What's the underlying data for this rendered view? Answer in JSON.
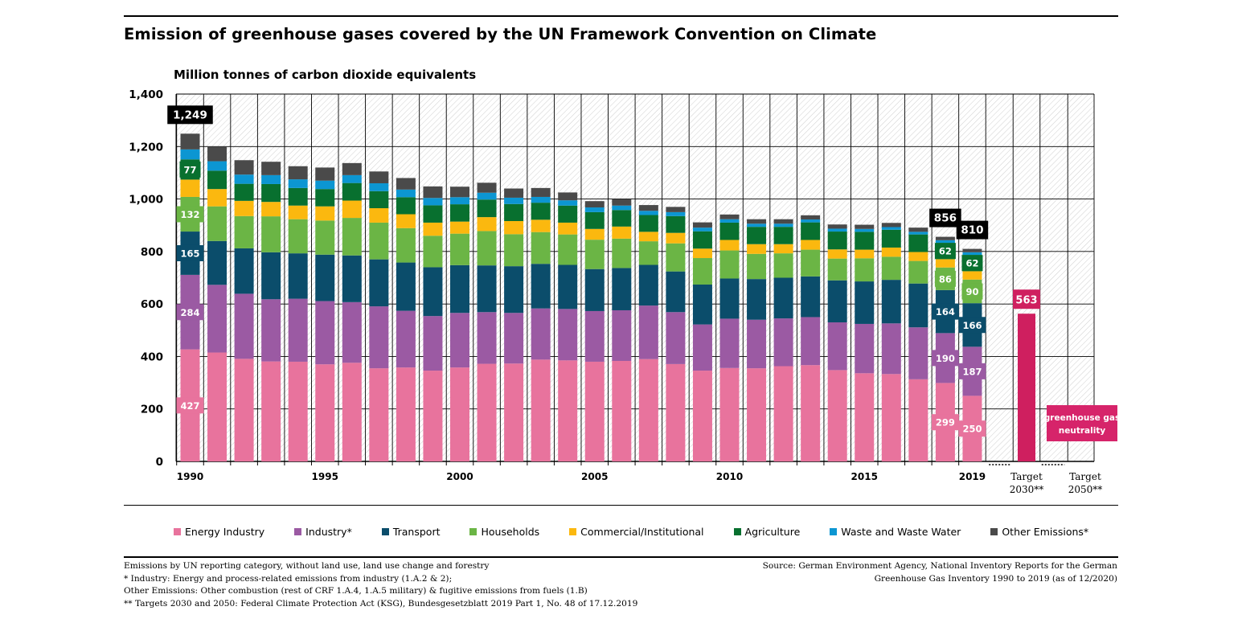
{
  "title": "Emission of greenhouse gases covered by the UN Framework Convention on Climate",
  "chart_data": {
    "type": "bar",
    "stacked": true,
    "ylabel": "Million tonnes of carbon dioxide equivalents",
    "ylim": [
      0,
      1400
    ],
    "yticks": [
      0,
      200,
      400,
      600,
      800,
      1000,
      1200,
      1400
    ],
    "ytick_labels": [
      "0",
      "200",
      "400",
      "600",
      "800",
      "1,000",
      "1,200",
      "1,400"
    ],
    "categories": [
      "1990",
      "1991",
      "1992",
      "1993",
      "1994",
      "1995",
      "1996",
      "1997",
      "1998",
      "1999",
      "2000",
      "2001",
      "2002",
      "2003",
      "2004",
      "2005",
      "2006",
      "2007",
      "2008",
      "2009",
      "2010",
      "2011",
      "2012",
      "2013",
      "2014",
      "2015",
      "2016",
      "2017",
      "2018",
      "2019"
    ],
    "x_labels": [
      {
        "index": 0,
        "text": "1990"
      },
      {
        "index": 5,
        "text": "1995"
      },
      {
        "index": 10,
        "text": "2000"
      },
      {
        "index": 15,
        "text": "2005"
      },
      {
        "index": 20,
        "text": "2010"
      },
      {
        "index": 25,
        "text": "2015"
      },
      {
        "index": 29,
        "text": "2019"
      }
    ],
    "series": [
      {
        "name": "Energy Industry",
        "color": "#e8739d",
        "values": [
          427,
          415,
          391,
          381,
          380,
          370,
          376,
          355,
          358,
          346,
          358,
          372,
          373,
          388,
          385,
          380,
          383,
          390,
          371,
          346,
          356,
          355,
          363,
          367,
          348,
          336,
          333,
          313,
          299,
          250
        ]
      },
      {
        "name": "Industry*",
        "color": "#9b5aa3",
        "values": [
          284,
          258,
          248,
          237,
          240,
          241,
          231,
          236,
          216,
          208,
          208,
          197,
          193,
          195,
          196,
          193,
          193,
          204,
          198,
          176,
          188,
          185,
          182,
          183,
          182,
          188,
          193,
          198,
          190,
          187
        ]
      },
      {
        "name": "Transport",
        "color": "#0b4d6b",
        "values": [
          165,
          167,
          173,
          179,
          173,
          177,
          178,
          179,
          184,
          186,
          182,
          178,
          178,
          170,
          168,
          160,
          161,
          155,
          155,
          152,
          153,
          155,
          155,
          155,
          160,
          162,
          166,
          167,
          164,
          166
        ]
      },
      {
        "name": "Households",
        "color": "#6bb545",
        "values": [
          132,
          132,
          123,
          137,
          130,
          130,
          143,
          140,
          131,
          120,
          120,
          131,
          122,
          121,
          116,
          112,
          112,
          90,
          107,
          101,
          107,
          96,
          93,
          102,
          83,
          88,
          88,
          86,
          86,
          90
        ]
      },
      {
        "name": "Commercial/Institutional",
        "color": "#fbb80f",
        "values": [
          66,
          66,
          58,
          55,
          52,
          54,
          66,
          55,
          53,
          50,
          46,
          53,
          50,
          47,
          45,
          41,
          46,
          36,
          40,
          36,
          40,
          37,
          35,
          37,
          35,
          33,
          35,
          34,
          32,
          32
        ]
      },
      {
        "name": "Agriculture",
        "color": "#08702f",
        "values": [
          77,
          70,
          65,
          68,
          67,
          66,
          67,
          65,
          65,
          66,
          66,
          67,
          65,
          65,
          65,
          64,
          63,
          64,
          64,
          66,
          66,
          66,
          66,
          67,
          68,
          68,
          68,
          67,
          62,
          62
        ]
      },
      {
        "name": "Waste and Waste Water",
        "color": "#0c96d2",
        "values": [
          38,
          36,
          35,
          34,
          33,
          32,
          30,
          30,
          29,
          28,
          27,
          26,
          24,
          22,
          20,
          18,
          17,
          16,
          15,
          14,
          13,
          12,
          12,
          11,
          11,
          11,
          10,
          10,
          10,
          10
        ]
      },
      {
        "name": "Other Emissions*",
        "color": "#4a4a4a",
        "values": [
          60,
          56,
          55,
          51,
          50,
          50,
          46,
          45,
          44,
          44,
          40,
          38,
          35,
          34,
          30,
          24,
          24,
          22,
          20,
          20,
          18,
          17,
          17,
          16,
          16,
          16,
          16,
          16,
          13,
          13
        ]
      }
    ],
    "segment_labels": [
      {
        "index": 0,
        "series": 0,
        "text": "427"
      },
      {
        "index": 0,
        "series": 1,
        "text": "284"
      },
      {
        "index": 0,
        "series": 2,
        "text": "165"
      },
      {
        "index": 0,
        "series": 3,
        "text": "132"
      },
      {
        "index": 0,
        "series": 5,
        "text": "77"
      },
      {
        "index": 28,
        "series": 0,
        "text": "299"
      },
      {
        "index": 28,
        "series": 1,
        "text": "190"
      },
      {
        "index": 28,
        "series": 2,
        "text": "164"
      },
      {
        "index": 28,
        "series": 3,
        "text": "86"
      },
      {
        "index": 28,
        "series": 5,
        "text": "62"
      },
      {
        "index": 29,
        "series": 0,
        "text": "250"
      },
      {
        "index": 29,
        "series": 1,
        "text": "187"
      },
      {
        "index": 29,
        "series": 2,
        "text": "166"
      },
      {
        "index": 29,
        "series": 3,
        "text": "90"
      },
      {
        "index": 29,
        "series": 5,
        "text": "62"
      }
    ],
    "total_labels": [
      {
        "index": 0,
        "value": 1249,
        "text": "1,249"
      },
      {
        "index": 28,
        "value": 856,
        "text": "856"
      },
      {
        "index": 29,
        "value": 810,
        "text": "810"
      }
    ],
    "targets": [
      {
        "name": "Target 2030",
        "label_line1": "Target",
        "label_line2": "2030**",
        "value": 563,
        "value_text": "563",
        "color": "#cf1f5f"
      },
      {
        "name": "Target 2050",
        "label_line1": "Target",
        "label_line2": "2050**",
        "text_line1": "greenhouse gas",
        "text_line2": "neutrality",
        "color": "#d6246a"
      }
    ]
  },
  "legend": [
    {
      "label": "Energy Industry",
      "color": "#e8739d"
    },
    {
      "label": "Industry*",
      "color": "#9b5aa3"
    },
    {
      "label": "Transport",
      "color": "#0b4d6b"
    },
    {
      "label": "Households",
      "color": "#6bb545"
    },
    {
      "label": "Commercial/Institutional",
      "color": "#fbb80f"
    },
    {
      "label": "Agriculture",
      "color": "#08702f"
    },
    {
      "label": "Waste and Waste Water",
      "color": "#0c96d2"
    },
    {
      "label": "Other Emissions*",
      "color": "#4a4a4a"
    }
  ],
  "notes": [
    "Emissions by UN reporting category, without land use, land use change and forestry",
    "* Industry: Energy and process-related emissions from industry (1.A.2 & 2);",
    "Other Emissions: Other combustion (rest of CRF 1.A.4, 1.A.5 military) & fugitive emissions from fuels (1.B)",
    "** Targets 2030 and 2050: Federal Climate Protection Act (KSG), Bundesgesetzblatt 2019 Part 1, No. 48 of 17.12.2019"
  ],
  "source": [
    "Source: German Environment Agency, National Inventory Reports for the German",
    "Greenhouse Gas Inventory 1990 to 2019 (as of 12/2020)"
  ]
}
